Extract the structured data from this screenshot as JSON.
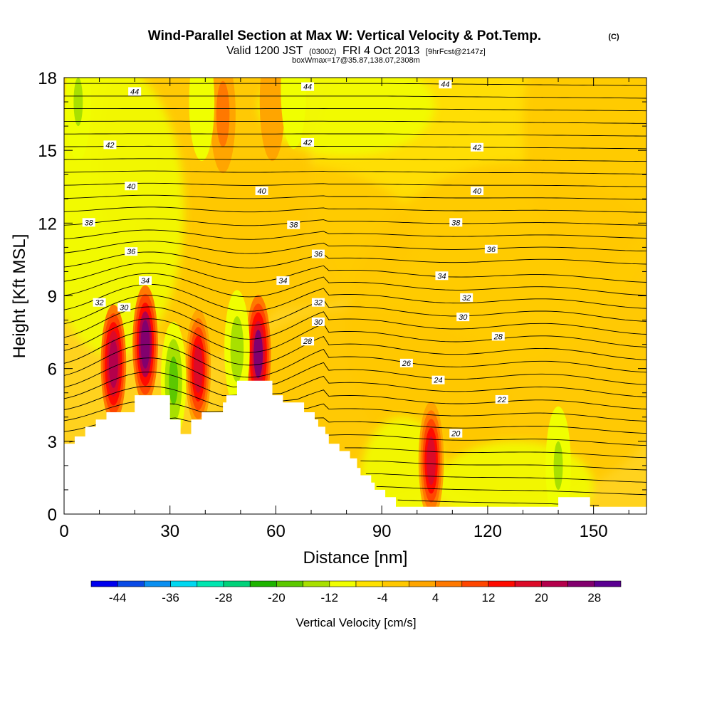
{
  "chart_data": {
    "type": "heatmap",
    "title": "Wind-Parallel Section at Max W: Vertical Velocity & Pot.Temp.",
    "title_mark": "(C)",
    "subtitle_parts": {
      "lead": "Valid 1200 JST",
      "utc": "(0300Z)",
      "date": "FRI 4 Oct 2013",
      "fcst": "[9hrFcst@2147z]"
    },
    "subtitle2": "boxWmax=17@35.87,138.07,2308m",
    "xlabel": "Distance [nm]",
    "ylabel": "Height [Kft MSL]",
    "xlim": [
      0,
      165
    ],
    "ylim": [
      0,
      18
    ],
    "x_ticks": [
      0,
      30,
      60,
      90,
      120,
      150
    ],
    "y_ticks": [
      0,
      3,
      6,
      9,
      12,
      15,
      18
    ],
    "colorbar": {
      "label": "Vertical Velocity [cm/s]",
      "tick_labels": [
        "-44",
        "-36",
        "-28",
        "-20",
        "-12",
        "-4",
        "4",
        "12",
        "20",
        "28"
      ],
      "colors": [
        "#0000ee",
        "#0a4be6",
        "#0a8ff0",
        "#00d8f0",
        "#00e6b0",
        "#00d27a",
        "#1eb400",
        "#5cc800",
        "#a8e000",
        "#f0ff00",
        "#ffe100",
        "#ffc800",
        "#ffa500",
        "#ff7800",
        "#ff4600",
        "#ff0a00",
        "#dc0a28",
        "#b4004b",
        "#82006e",
        "#5a0091"
      ]
    },
    "contour_labels": [
      {
        "text": "44",
        "x": 20,
        "y": 17.4
      },
      {
        "text": "44",
        "x": 69,
        "y": 17.6
      },
      {
        "text": "44",
        "x": 108,
        "y": 17.7
      },
      {
        "text": "42",
        "x": 13,
        "y": 15.2
      },
      {
        "text": "42",
        "x": 69,
        "y": 15.3
      },
      {
        "text": "42",
        "x": 117,
        "y": 15.1
      },
      {
        "text": "40",
        "x": 19,
        "y": 13.5
      },
      {
        "text": "40",
        "x": 56,
        "y": 13.3
      },
      {
        "text": "40",
        "x": 117,
        "y": 13.3
      },
      {
        "text": "38",
        "x": 7,
        "y": 12.0
      },
      {
        "text": "38",
        "x": 65,
        "y": 11.9
      },
      {
        "text": "38",
        "x": 111,
        "y": 12.0
      },
      {
        "text": "36",
        "x": 19,
        "y": 10.8
      },
      {
        "text": "36",
        "x": 72,
        "y": 10.7
      },
      {
        "text": "36",
        "x": 121,
        "y": 10.9
      },
      {
        "text": "34",
        "x": 23,
        "y": 9.6
      },
      {
        "text": "34",
        "x": 62,
        "y": 9.6
      },
      {
        "text": "34",
        "x": 107,
        "y": 9.8
      },
      {
        "text": "32",
        "x": 10,
        "y": 8.7
      },
      {
        "text": "32",
        "x": 72,
        "y": 8.7
      },
      {
        "text": "32",
        "x": 114,
        "y": 8.9
      },
      {
        "text": "30",
        "x": 17,
        "y": 8.5
      },
      {
        "text": "30",
        "x": 72,
        "y": 7.9
      },
      {
        "text": "30",
        "x": 113,
        "y": 8.1
      },
      {
        "text": "28",
        "x": 69,
        "y": 7.1
      },
      {
        "text": "28",
        "x": 123,
        "y": 7.3
      },
      {
        "text": "26",
        "x": 97,
        "y": 6.2
      },
      {
        "text": "24",
        "x": 106,
        "y": 5.5
      },
      {
        "text": "22",
        "x": 124,
        "y": 4.7
      },
      {
        "text": "20",
        "x": 111,
        "y": 3.3
      }
    ],
    "updrafts": [
      {
        "x": 14,
        "y": 6.2,
        "w": 24
      },
      {
        "x": 23,
        "y": 7.0,
        "w": 30
      },
      {
        "x": 38,
        "y": 6.0,
        "w": 20
      },
      {
        "x": 45,
        "y": 16.5,
        "w": 10
      },
      {
        "x": 55,
        "y": 6.6,
        "w": 28
      },
      {
        "x": 104,
        "y": 2.2,
        "w": 22
      },
      {
        "x": 59,
        "y": 17.0,
        "w": 5
      }
    ],
    "downdrafts": [
      {
        "x": 31,
        "y": 5.5,
        "w": -14
      },
      {
        "x": 49,
        "y": 6.8,
        "w": -10
      },
      {
        "x": 4,
        "y": 17.0,
        "w": -9
      },
      {
        "x": 39,
        "y": 17.0,
        "w": -7
      },
      {
        "x": 65,
        "y": 17.5,
        "w": -7
      },
      {
        "x": 140,
        "y": 2.0,
        "w": -9
      }
    ],
    "terrain": [
      [
        0,
        2.9
      ],
      [
        3,
        2.9
      ],
      [
        3,
        3.2
      ],
      [
        6,
        3.2
      ],
      [
        6,
        3.6
      ],
      [
        9,
        3.6
      ],
      [
        9,
        3.9
      ],
      [
        12,
        3.9
      ],
      [
        12,
        4.2
      ],
      [
        20,
        4.2
      ],
      [
        20,
        4.9
      ],
      [
        30,
        4.9
      ],
      [
        30,
        3.9
      ],
      [
        33,
        3.9
      ],
      [
        33,
        3.3
      ],
      [
        36,
        3.3
      ],
      [
        36,
        3.9
      ],
      [
        39,
        3.9
      ],
      [
        39,
        4.2
      ],
      [
        45,
        4.2
      ],
      [
        45,
        4.6
      ],
      [
        46,
        4.6
      ],
      [
        46,
        4.9
      ],
      [
        49,
        4.9
      ],
      [
        49,
        5.5
      ],
      [
        59,
        5.5
      ],
      [
        59,
        4.9
      ],
      [
        62,
        4.9
      ],
      [
        62,
        4.6
      ],
      [
        68,
        4.6
      ],
      [
        68,
        4.2
      ],
      [
        71,
        4.2
      ],
      [
        71,
        3.9
      ],
      [
        72,
        3.9
      ],
      [
        72,
        3.6
      ],
      [
        74,
        3.6
      ],
      [
        74,
        3.3
      ],
      [
        75,
        3.3
      ],
      [
        75,
        2.9
      ],
      [
        78,
        2.9
      ],
      [
        78,
        2.6
      ],
      [
        81,
        2.6
      ],
      [
        81,
        2.3
      ],
      [
        83,
        2.3
      ],
      [
        83,
        1.9
      ],
      [
        84,
        1.9
      ],
      [
        84,
        1.6
      ],
      [
        87,
        1.6
      ],
      [
        87,
        1.3
      ],
      [
        88,
        1.3
      ],
      [
        88,
        1.0
      ],
      [
        91,
        1.0
      ],
      [
        91,
        0.7
      ],
      [
        94,
        0.7
      ],
      [
        94,
        0.3
      ],
      [
        140,
        0.3
      ],
      [
        140,
        0.7
      ],
      [
        149,
        0.7
      ],
      [
        149,
        0.3
      ],
      [
        165,
        0.3
      ]
    ]
  }
}
